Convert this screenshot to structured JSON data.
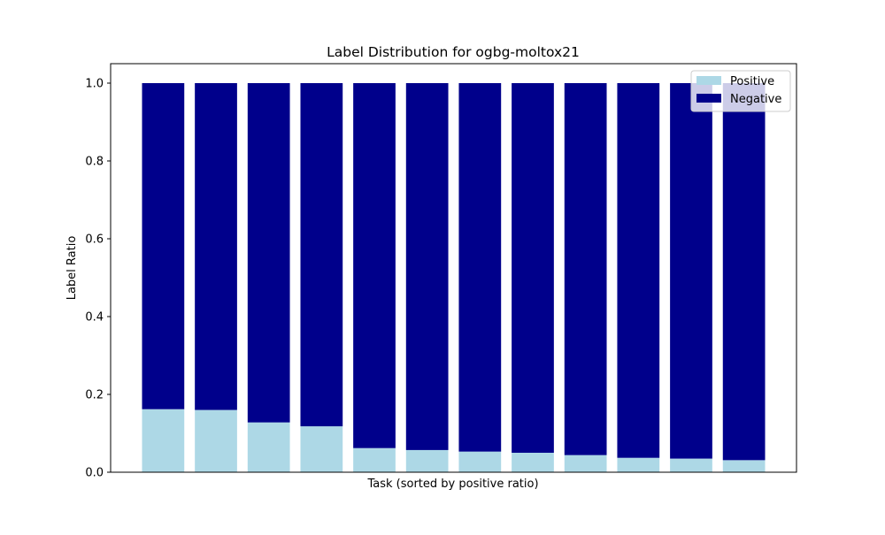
{
  "chart_data": {
    "type": "bar",
    "stacked": true,
    "title": "Label Distribution for ogbg-moltox21",
    "xlabel": "Task (sorted by positive ratio)",
    "ylabel": "Label Ratio",
    "ylim": [
      0,
      1.05
    ],
    "yticks": [
      "0.0",
      "0.2",
      "0.4",
      "0.6",
      "0.8",
      "1.0"
    ],
    "categories": [
      "",
      "",
      "",
      "",
      "",
      "",
      "",
      "",
      "",
      "",
      "",
      ""
    ],
    "series": [
      {
        "name": "Positive",
        "color": "#add8e6",
        "values": [
          0.162,
          0.16,
          0.128,
          0.118,
          0.062,
          0.057,
          0.053,
          0.05,
          0.044,
          0.037,
          0.035,
          0.031
        ]
      },
      {
        "name": "Negative",
        "color": "#00008b",
        "values": [
          0.838,
          0.84,
          0.872,
          0.882,
          0.938,
          0.943,
          0.947,
          0.95,
          0.956,
          0.963,
          0.965,
          0.969
        ]
      }
    ],
    "legend_position": "top-right",
    "grid": false
  }
}
